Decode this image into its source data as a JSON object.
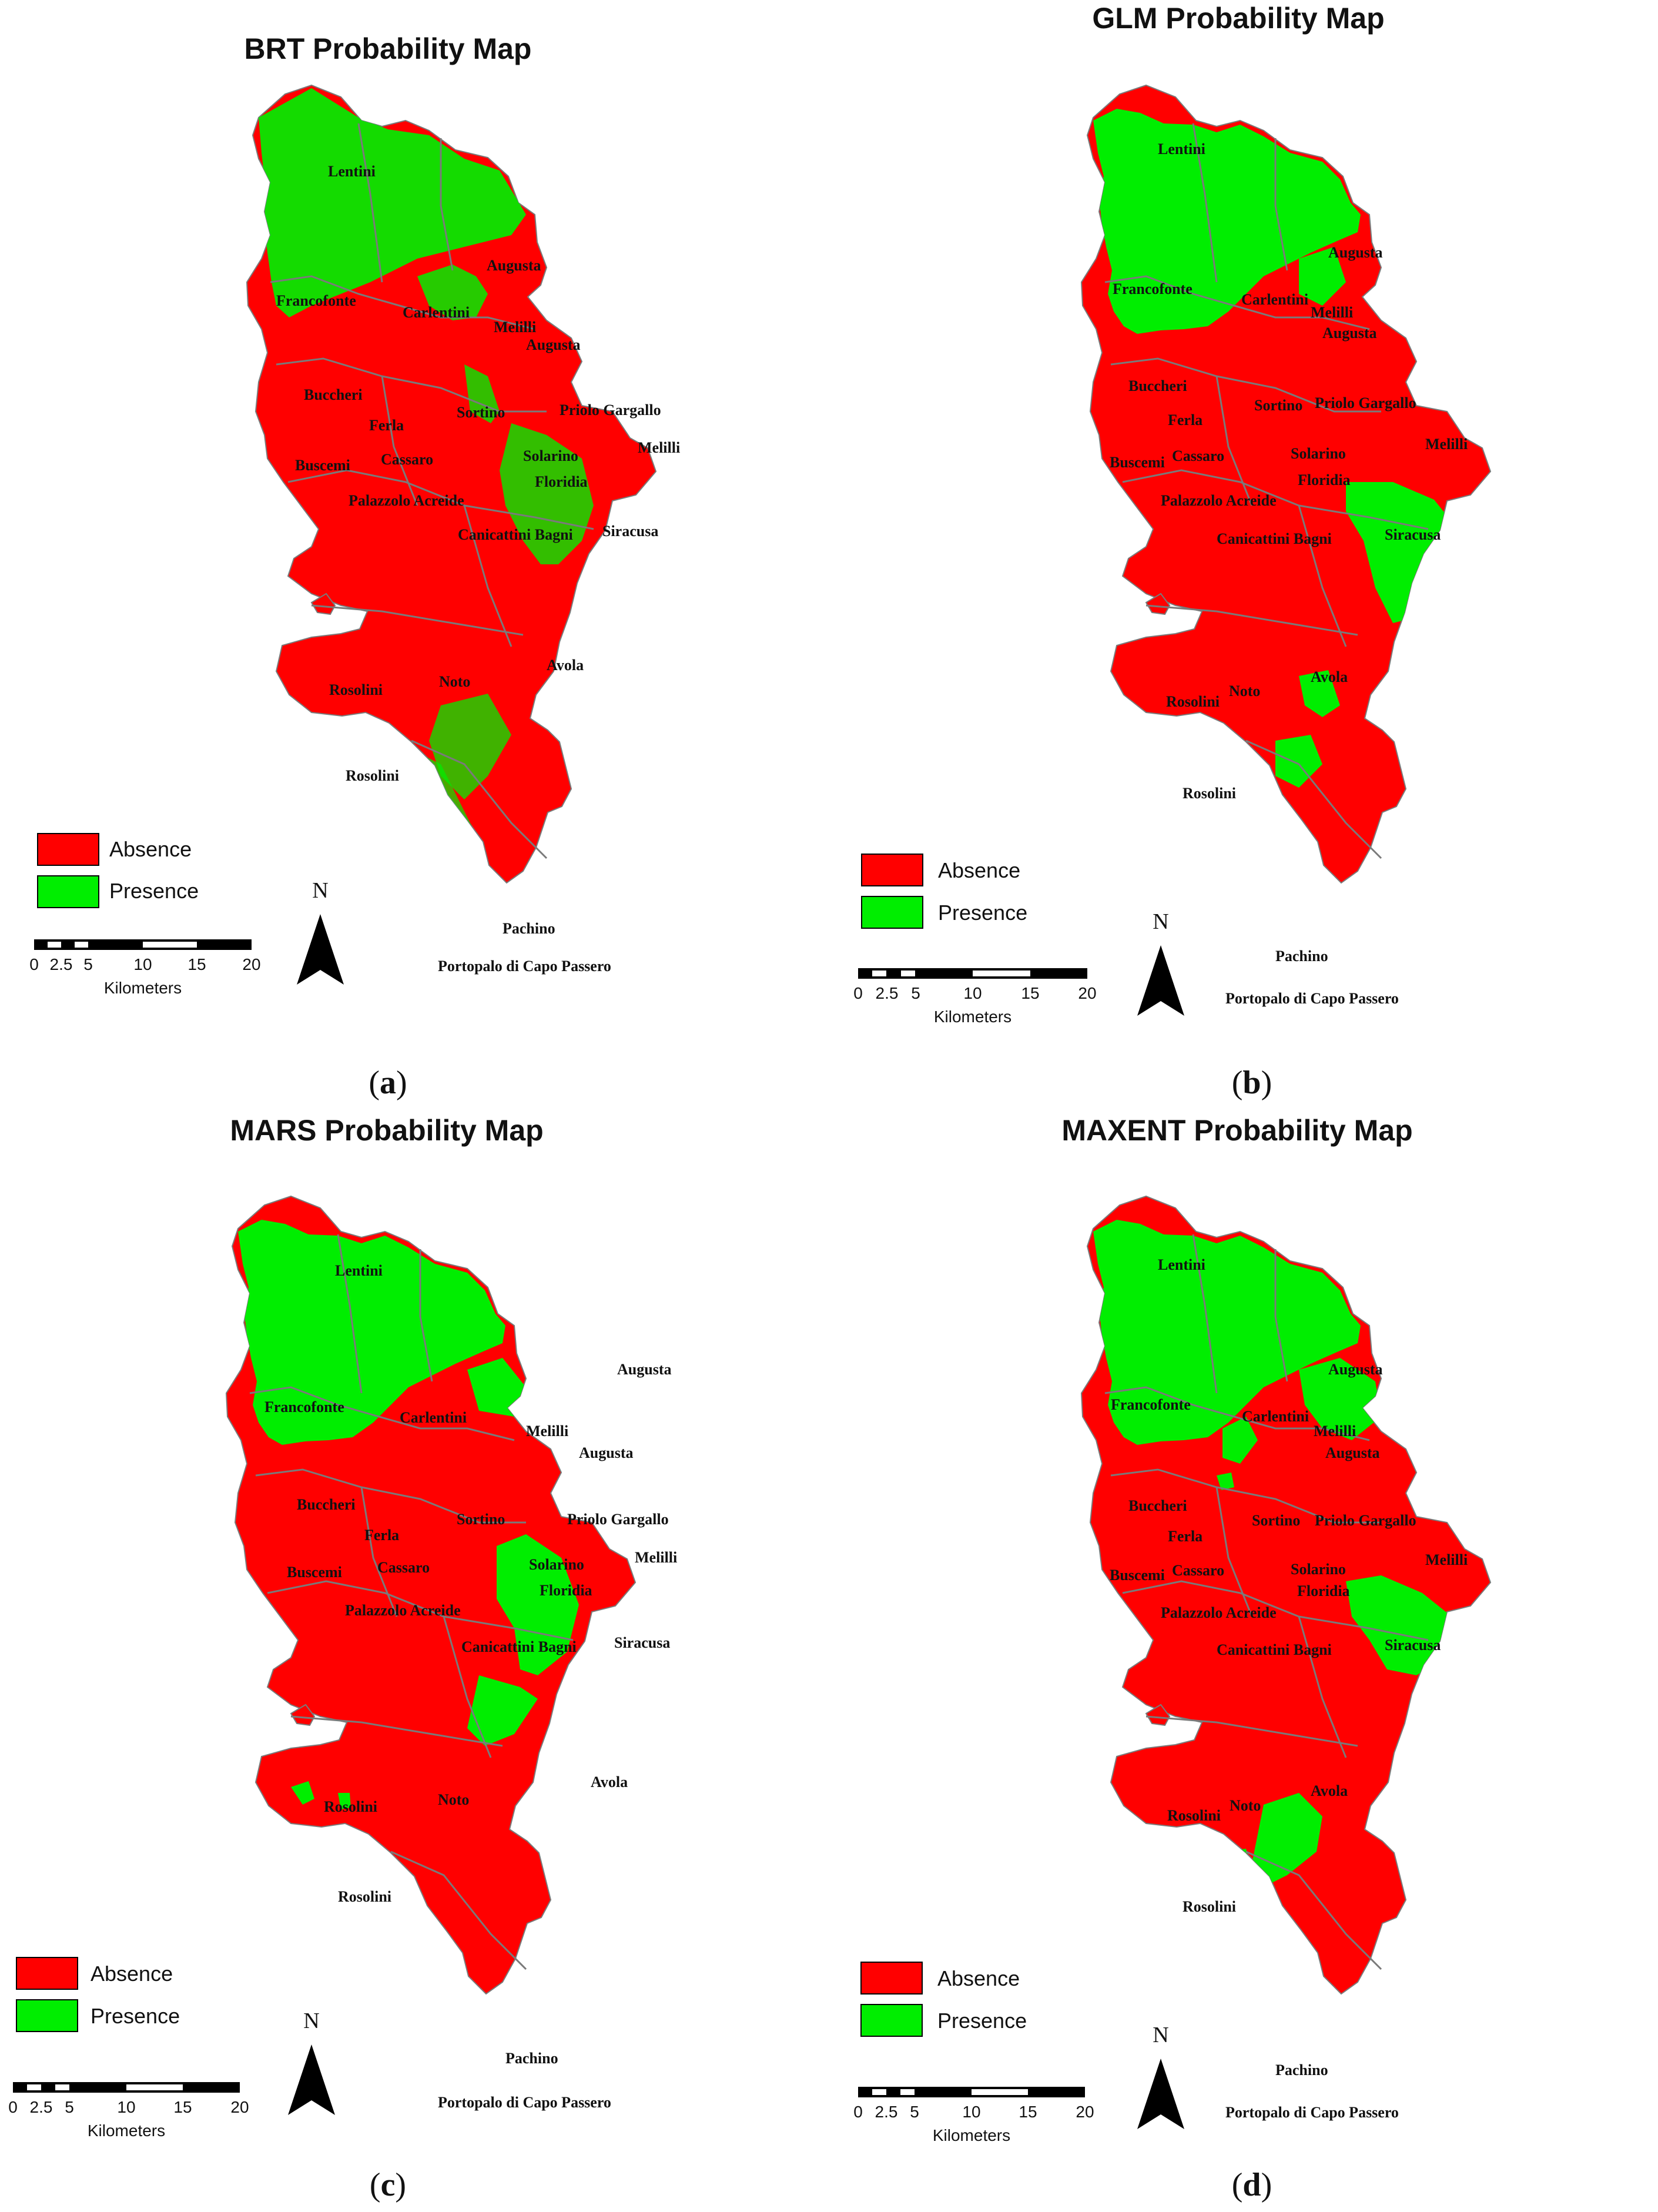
{
  "colors": {
    "absence": "#ff0000",
    "presence": "#00ee00",
    "border": "#7a7a7a"
  },
  "legend": {
    "absence_label": "Absence",
    "presence_label": "Presence"
  },
  "scale_bar": {
    "ticks": [
      "0",
      "2.5",
      "5",
      "10",
      "15",
      "20"
    ],
    "units": "Kilometers"
  },
  "north_arrow": {
    "label": "N"
  },
  "panels": [
    {
      "id": "a",
      "title": "BRT Probability Map",
      "caption_letter": "a",
      "places": [
        "Lentini",
        "Augusta",
        "Francofonte",
        "Carlentini",
        "Melilli",
        "Augusta",
        "Buccheri",
        "Ferla",
        "Sortino",
        "Priolo Gargallo",
        "Buscemi",
        "Cassaro",
        "Solarino",
        "Melilli",
        "Floridia",
        "Palazzolo Acreide",
        "Siracusa",
        "Canicattini Bagni",
        "Avola",
        "Rosolini",
        "Noto",
        "Rosolini",
        "Pachino",
        "Portopalo di Capo Passero"
      ]
    },
    {
      "id": "b",
      "title": "GLM Probability Map",
      "caption_letter": "b",
      "places": [
        "Lentini",
        "Augusta",
        "Francofonte",
        "Carlentini",
        "Melilli",
        "Augusta",
        "Buccheri",
        "Sortino",
        "Priolo Gargallo",
        "Ferla",
        "Melilli",
        "Buscemi",
        "Cassaro",
        "Solarino",
        "Floridia",
        "Palazzolo Acreide",
        "Siracusa",
        "Canicattini Bagni",
        "Avola",
        "Rosolini",
        "Noto",
        "Rosolini",
        "Pachino",
        "Portopalo di Capo Passero"
      ]
    },
    {
      "id": "c",
      "title": "MARS Probability Map",
      "caption_letter": "c",
      "places": [
        "Lentini",
        "Augusta",
        "Francofonte",
        "Carlentini",
        "Melilli",
        "Augusta",
        "Buccheri",
        "Ferla",
        "Sortino",
        "Priolo Gargallo",
        "Buscemi",
        "Cassaro",
        "Solarino",
        "Melilli",
        "Floridia",
        "Palazzolo Acreide",
        "Siracusa",
        "Canicattini Bagni",
        "Avola",
        "Rosolini",
        "Noto",
        "Rosolini",
        "Pachino",
        "Portopalo di Capo Passero"
      ]
    },
    {
      "id": "d",
      "title": "MAXENT Probability Map",
      "caption_letter": "d",
      "places": [
        "Lentini",
        "Augusta",
        "Francofonte",
        "Carlentini",
        "Melilli",
        "Augusta",
        "Buccheri",
        "Sortino",
        "Priolo Gargallo",
        "Ferla",
        "Melilli",
        "Buscemi",
        "Cassaro",
        "Solarino",
        "Floridia",
        "Palazzolo Acreide",
        "Siracusa",
        "Canicattini Bagni",
        "Avola",
        "Rosolini",
        "Noto",
        "Rosolini",
        "Pachino",
        "Portopalo di Capo Passero"
      ]
    }
  ]
}
